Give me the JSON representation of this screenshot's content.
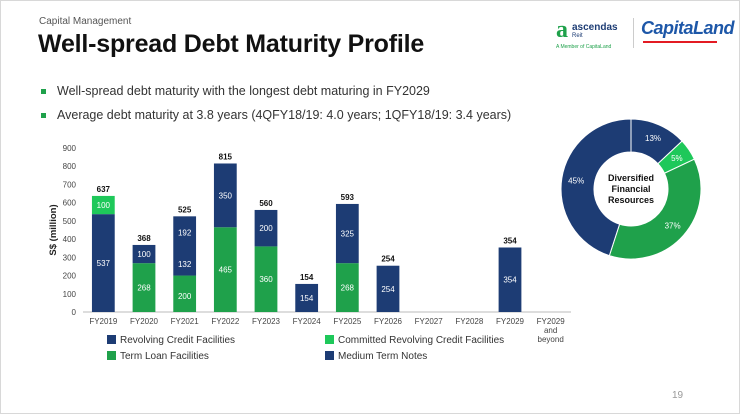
{
  "header": {
    "subtitle": "Capital Management",
    "title": "Well-spread Debt Maturity Profile"
  },
  "logos": {
    "ascendas_name": "ascendas",
    "ascendas_reit": "Reit",
    "ascendas_sub": "A Member of CapitaLand",
    "capitaland": "CapitaLand"
  },
  "bullets": [
    "Well-spread debt maturity with the longest debt maturing in FY2029",
    "Average debt maturity at 3.8 years (4QFY18/19: 4.0 years; 1QFY18/19: 3.4 years)"
  ],
  "colors": {
    "navy": "#1d3c74",
    "green": "#1fa14b",
    "bright_green": "#1ec85a"
  },
  "chart_data": [
    {
      "type": "bar",
      "stacked": true,
      "title": "",
      "xlabel": "",
      "ylabel": "S$ (million)",
      "ylim": [
        0,
        900
      ],
      "yticks": [
        0,
        100,
        200,
        300,
        400,
        500,
        600,
        700,
        800,
        900
      ],
      "categories": [
        "FY2019",
        "FY2020",
        "FY2021",
        "FY2022",
        "FY2023",
        "FY2024",
        "FY2025",
        "FY2026",
        "FY2027",
        "FY2028",
        "FY2029",
        "FY2029 and beyond"
      ],
      "series": [
        {
          "name": "Revolving Credit Facilities",
          "color": "#1d3c74",
          "values": [
            537,
            0,
            0,
            0,
            0,
            0,
            0,
            0,
            0,
            0,
            0,
            0
          ]
        },
        {
          "name": "Committed Revolving Credit Facilities",
          "color": "#1ec85a",
          "values": [
            100,
            0,
            0,
            0,
            0,
            0,
            0,
            0,
            0,
            0,
            0,
            0
          ]
        },
        {
          "name": "Term Loan Facilities",
          "color": "#1fa14b",
          "values": [
            0,
            268,
            200,
            465,
            360,
            0,
            268,
            0,
            0,
            0,
            0,
            0
          ]
        },
        {
          "name": "Medium Term Notes",
          "color": "#1d3c74",
          "values": [
            0,
            100,
            325,
            350,
            200,
            154,
            325,
            254,
            0,
            0,
            354,
            0
          ]
        }
      ],
      "segment_labels": [
        [
          "537",
          "100"
        ],
        [
          "268",
          "100"
        ],
        [
          "200",
          "132",
          "192"
        ],
        [
          "465",
          "350"
        ],
        [
          "360",
          "200"
        ],
        [
          "154"
        ],
        [
          "268",
          "325"
        ],
        [
          "254"
        ],
        [],
        [],
        [
          "354"
        ],
        []
      ],
      "totals": [
        "637",
        "368",
        "525",
        "815",
        "560",
        "154",
        "593",
        "254",
        "",
        "",
        "354",
        ""
      ],
      "category_labels": [
        [
          "FY2019"
        ],
        [
          "FY2020"
        ],
        [
          "FY2021"
        ],
        [
          "FY2022"
        ],
        [
          "FY2023"
        ],
        [
          "FY2024"
        ],
        [
          "FY2025"
        ],
        [
          "FY2026"
        ],
        [
          "FY2027"
        ],
        [
          "FY2028"
        ],
        [
          "FY2029"
        ],
        [
          "FY2029",
          "and",
          "beyond"
        ]
      ],
      "legend": [
        "Revolving Credit Facilities",
        "Committed Revolving Credit Facilities",
        "Term Loan Facilities",
        "Medium Term Notes"
      ],
      "legend_position": "bottom"
    },
    {
      "type": "pie",
      "donut": true,
      "center_label": [
        "Diversified",
        "Financial",
        "Resources"
      ],
      "slices": [
        {
          "label": "13%",
          "value": 13,
          "color": "#1d3c74"
        },
        {
          "label": "5%",
          "value": 5,
          "color": "#1ec85a"
        },
        {
          "label": "37%",
          "value": 37,
          "color": "#1fa14b"
        },
        {
          "label": "45%",
          "value": 45,
          "color": "#1d3c74"
        }
      ]
    }
  ],
  "footer": {
    "page_number": "19"
  }
}
